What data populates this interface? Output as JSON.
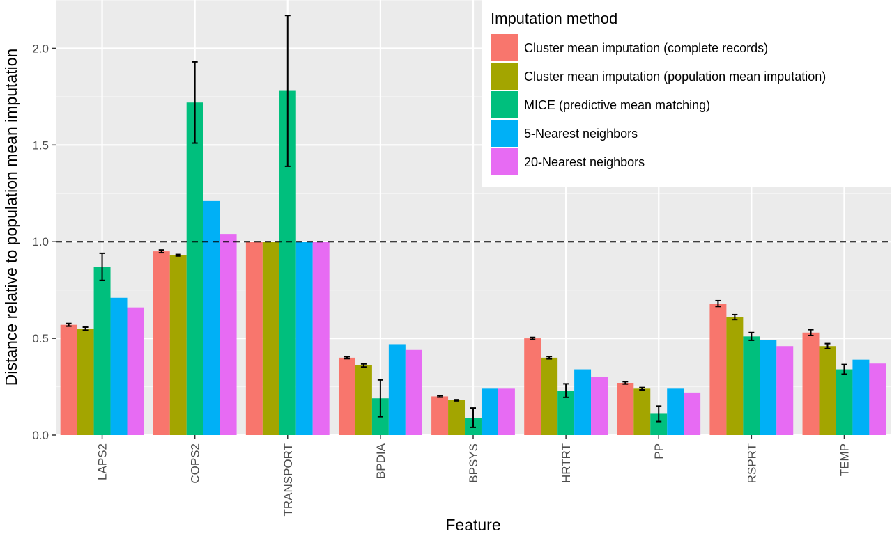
{
  "chart_data": {
    "type": "bar",
    "title": "",
    "xlabel": "Feature",
    "ylabel": "Distance relative to population mean imputation",
    "ylim": [
      0,
      2.25
    ],
    "yticks": [
      0.0,
      0.5,
      1.0,
      1.5,
      2.0
    ],
    "ytick_labels": [
      "0.0",
      "0.5",
      "1.0",
      "1.5",
      "2.0"
    ],
    "reference_line": 1.0,
    "grid": true,
    "legend_position": "top-right",
    "legend_title": "Imputation method",
    "categories": [
      "LAPS2",
      "COPS2",
      "TRANSPORT",
      "BPDIA",
      "BPSYS",
      "HRTRT",
      "PP",
      "RSPRT",
      "TEMP"
    ],
    "series": [
      {
        "name": "Cluster mean imputation (complete records)",
        "color": "#F8766D",
        "values": [
          0.57,
          0.95,
          1.0,
          0.4,
          0.2,
          0.5,
          0.27,
          0.68,
          0.53
        ],
        "errors": [
          0.007,
          0.007,
          0.0,
          0.005,
          0.004,
          0.005,
          0.006,
          0.015,
          0.015
        ]
      },
      {
        "name": "Cluster mean imputation (population mean imputation)",
        "color": "#A3A500",
        "values": [
          0.55,
          0.93,
          1.0,
          0.36,
          0.18,
          0.4,
          0.24,
          0.61,
          0.46
        ],
        "errors": [
          0.008,
          0.004,
          0.0,
          0.008,
          0.003,
          0.006,
          0.006,
          0.013,
          0.013
        ]
      },
      {
        "name": "MICE (predictive mean matching)",
        "color": "#00BF7D",
        "values": [
          0.87,
          1.72,
          1.78,
          0.19,
          0.09,
          0.23,
          0.11,
          0.51,
          0.34
        ],
        "errors": [
          0.07,
          0.21,
          0.39,
          0.095,
          0.05,
          0.035,
          0.04,
          0.02,
          0.025
        ]
      },
      {
        "name": "5-Nearest neighbors",
        "color": "#00B0F6",
        "values": [
          0.71,
          1.21,
          1.0,
          0.47,
          0.24,
          0.34,
          0.24,
          0.49,
          0.39
        ],
        "errors": [
          0,
          0,
          0,
          0,
          0,
          0,
          0,
          0,
          0
        ]
      },
      {
        "name": "20-Nearest neighbors",
        "color": "#E76BF3",
        "values": [
          0.66,
          1.04,
          1.0,
          0.44,
          0.24,
          0.3,
          0.22,
          0.46,
          0.37
        ],
        "errors": [
          0,
          0,
          0,
          0,
          0,
          0,
          0,
          0,
          0
        ]
      }
    ]
  }
}
